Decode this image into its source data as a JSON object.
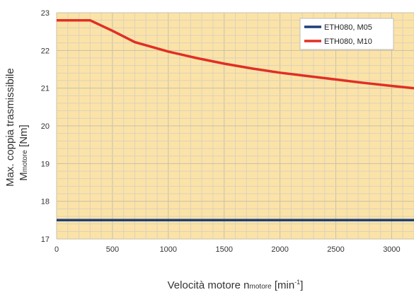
{
  "chart_data": {
    "type": "line",
    "x_axis": {
      "label_main": "Velocità motore n",
      "label_sub": "motore",
      "label_unit_prefix": " [min",
      "label_unit_sup": "-1",
      "label_unit_suffix": "]",
      "min": 0,
      "max": 3200,
      "ticks": [
        0,
        500,
        1000,
        1500,
        2000,
        2500,
        3000
      ]
    },
    "y_axis": {
      "label_line1": "Max. coppia trasmissibile",
      "label_line2_main": "M",
      "label_line2_sub": "motore",
      "label_line2_unit": " [Nm]",
      "min": 17,
      "max": 23,
      "ticks": [
        17,
        18,
        19,
        20,
        21,
        22,
        23
      ]
    },
    "grid": true,
    "minor_grid_per_major_x": 5,
    "minor_grid_per_major_y": 5,
    "legend_position": "top-right",
    "colors": {
      "plot_background": "#fbe3a8",
      "major_grid": "#c9c0a8",
      "minor_grid": "#ddd2b8",
      "legend_background": "#ffffff"
    },
    "series": [
      {
        "name": "ETH080, M05",
        "color": "#1f3f78",
        "x": [
          0,
          3200
        ],
        "y": [
          17.5,
          17.5
        ]
      },
      {
        "name": "ETH080, M10",
        "color": "#e02f24",
        "x": [
          0,
          300,
          500,
          700,
          1000,
          1250,
          1500,
          1750,
          2000,
          2250,
          2500,
          2750,
          3000,
          3200
        ],
        "y": [
          22.8,
          22.8,
          22.52,
          22.22,
          21.97,
          21.8,
          21.65,
          21.52,
          21.41,
          21.32,
          21.23,
          21.14,
          21.06,
          21.0
        ]
      }
    ]
  }
}
